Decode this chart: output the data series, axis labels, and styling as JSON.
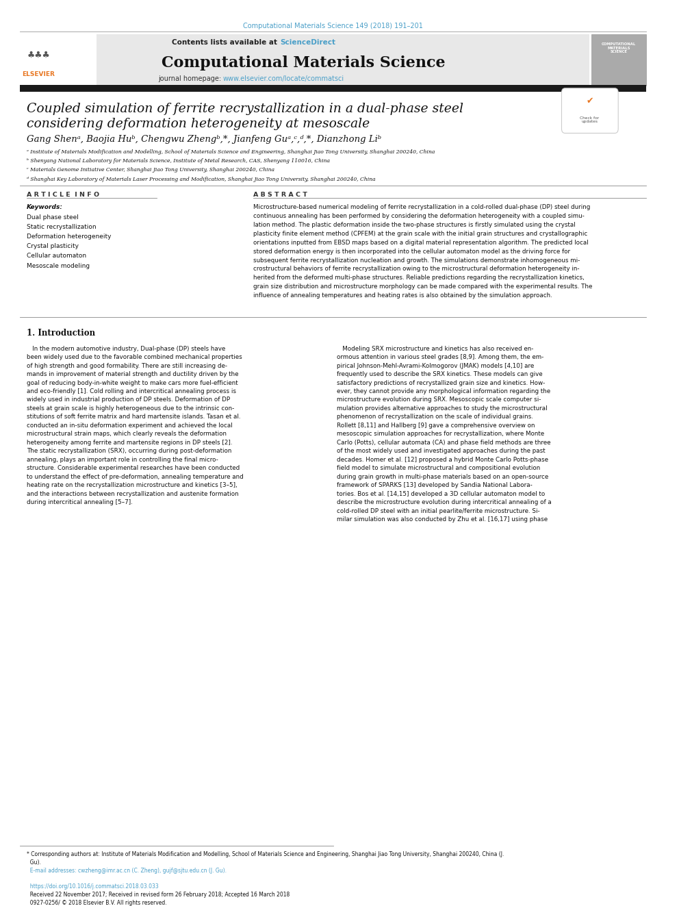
{
  "page_width": 9.92,
  "page_height": 13.23,
  "bg_color": "#ffffff",
  "top_citation": "Computational Materials Science 149 (2018) 191–201",
  "citation_color": "#4a9fc8",
  "header_bg": "#e8e8e8",
  "journal_title": "Computational Materials Science",
  "homepage_link": "www.elsevier.com/locate/commatsci",
  "dark_bar_color": "#1a1a1a",
  "article_title_line1": "Coupled simulation of ferrite recrystallization in a dual-phase steel",
  "article_title_line2": "considering deformation heterogeneity at mesoscale",
  "affil_a": "ᵃ Institute of Materials Modification and Modelling, School of Materials Science and Engineering, Shanghai Jiao Tong University, Shanghai 200240, China",
  "affil_b": "ᵇ Shenyang National Laboratory for Materials Science, Institute of Metal Research, CAS, Shenyang 110016, China",
  "affil_c": "ᶜ Materials Genome Initiative Center, Shanghai Jiao Tong University, Shanghai 200240, China",
  "affil_d": "ᵈ Shanghai Key Laboratory of Materials Laser Processing and Modification, Shanghai Jiao Tong University, Shanghai 200240, China",
  "article_info_title": "A R T I C L E  I N F O",
  "abstract_title": "A B S T R A C T",
  "keywords_label": "Keywords:",
  "keywords": [
    "Dual phase steel",
    "Static recrystallization",
    "Deformation heterogeneity",
    "Crystal plasticity",
    "Cellular automaton",
    "Mesoscale modeling"
  ],
  "section1_title": "1. Introduction",
  "link_color": "#4a9fc8",
  "text_color": "#000000",
  "elsevier_orange": "#e87722"
}
